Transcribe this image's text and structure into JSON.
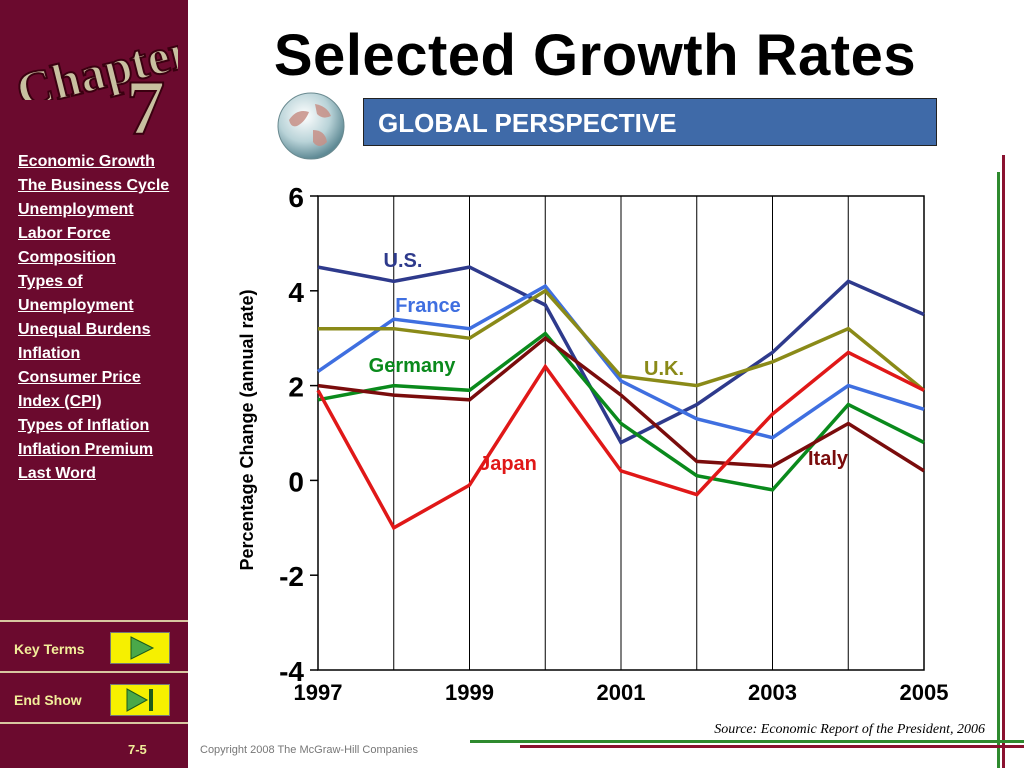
{
  "sidebar": {
    "chapter_word": "Chapter",
    "chapter_number": "7",
    "nav_items": [
      "Economic Growth",
      "The Business Cycle",
      "Unemployment",
      "Labor Force Composition",
      "Types of Unemployment",
      "Unequal Burdens",
      "Inflation",
      "Consumer Price Index (CPI)",
      "Types of Inflation",
      "Inflation Premium",
      "Last Word"
    ],
    "key_terms_label": "Key Terms",
    "end_show_label": "End Show",
    "page_number": "7-5"
  },
  "header": {
    "title": "Selected Growth Rates",
    "banner": "GLOBAL PERSPECTIVE"
  },
  "footer": {
    "source": "Source: Economic Report of the President, 2006",
    "copyright": "Copyright 2008 The McGraw-Hill Companies"
  },
  "colors": {
    "sidebar": "#6b0a2e",
    "banner": "#3f6aa8",
    "button": "#f6f000",
    "us": "#2e3a8c",
    "france": "#3f6fe0",
    "germany": "#0a8a1c",
    "uk": "#8a8a18",
    "japan": "#e01818",
    "italy": "#7a0c0c"
  },
  "chart_data": {
    "type": "line",
    "x": [
      1997,
      1998,
      1999,
      2000,
      2001,
      2002,
      2003,
      2004,
      2005
    ],
    "xticks": [
      "1997",
      "1999",
      "2001",
      "2003",
      "2005"
    ],
    "yticks": [
      "6",
      "4",
      "2",
      "0",
      "-2",
      "-4"
    ],
    "ylabel": "Percentage Change (annual rate)",
    "ylim": [
      -4,
      6
    ],
    "grid": true,
    "series": [
      {
        "name": "U.S.",
        "color": "#2e3a8c",
        "values": [
          4.5,
          4.2,
          4.5,
          3.7,
          0.8,
          1.6,
          2.7,
          4.2,
          3.5
        ]
      },
      {
        "name": "France",
        "color": "#3f6fe0",
        "values": [
          2.3,
          3.4,
          3.2,
          4.1,
          2.1,
          1.3,
          0.9,
          2.0,
          1.5
        ]
      },
      {
        "name": "U.K.",
        "color": "#8a8a18",
        "values": [
          3.2,
          3.2,
          3.0,
          4.0,
          2.2,
          2.0,
          2.5,
          3.2,
          1.9
        ]
      },
      {
        "name": "Germany",
        "color": "#0a8a1c",
        "values": [
          1.7,
          2.0,
          1.9,
          3.1,
          1.2,
          0.1,
          -0.2,
          1.6,
          0.8
        ]
      },
      {
        "name": "Italy",
        "color": "#7a0c0c",
        "values": [
          2.0,
          1.8,
          1.7,
          3.0,
          1.8,
          0.4,
          0.3,
          1.2,
          0.2
        ]
      },
      {
        "name": "Japan",
        "color": "#e01818",
        "values": [
          1.9,
          -1.0,
          -0.1,
          2.4,
          0.2,
          -0.3,
          1.4,
          2.7,
          1.9
        ]
      }
    ]
  }
}
